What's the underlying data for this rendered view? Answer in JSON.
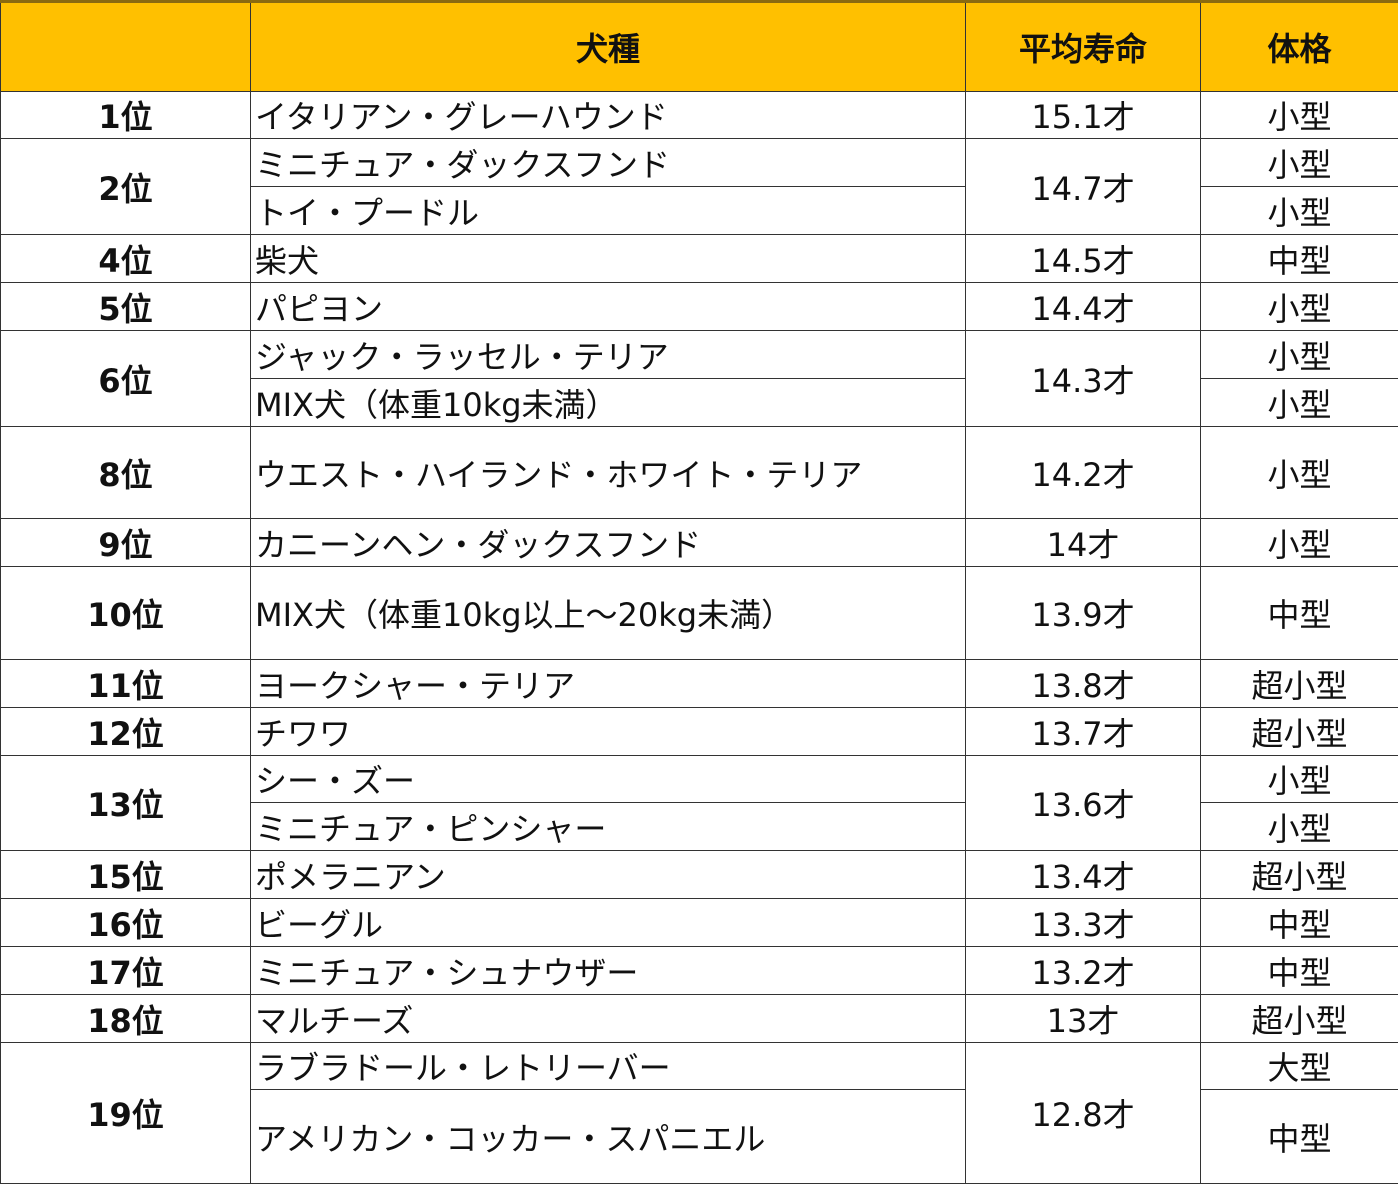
{
  "header": {
    "rank": "",
    "breed": "犬種",
    "lifespan": "平均寿命",
    "size": "体格"
  },
  "accent_color": "#FFC000",
  "groups": [
    {
      "rank": "1位",
      "lifespan": "15.1才",
      "breeds": [
        {
          "name": "イタリアン・グレーハウンド",
          "size": "小型"
        }
      ]
    },
    {
      "rank": "2位",
      "lifespan": "14.7才",
      "breeds": [
        {
          "name": "ミニチュア・ダックスフンド",
          "size": "小型"
        },
        {
          "name": "トイ・プードル",
          "size": "小型"
        }
      ]
    },
    {
      "rank": "4位",
      "lifespan": "14.5才",
      "breeds": [
        {
          "name": "柴犬",
          "size": "中型"
        }
      ]
    },
    {
      "rank": "5位",
      "lifespan": "14.4才",
      "breeds": [
        {
          "name": "パピヨン",
          "size": "小型"
        }
      ]
    },
    {
      "rank": "6位",
      "lifespan": "14.3才",
      "breeds": [
        {
          "name": "ジャック・ラッセル・テリア",
          "size": "小型"
        },
        {
          "name": "MIX犬（体重10kg未満）",
          "size": "小型"
        }
      ]
    },
    {
      "rank": "8位",
      "lifespan": "14.2才",
      "breeds": [
        {
          "name": "ウエスト・ハイランド・ホワイト・テリア",
          "size": "小型"
        }
      ]
    },
    {
      "rank": "9位",
      "lifespan": "14才",
      "breeds": [
        {
          "name": "カニーンヘン・ダックスフンド",
          "size": "小型"
        }
      ]
    },
    {
      "rank": "10位",
      "lifespan": "13.9才",
      "breeds": [
        {
          "name": "MIX犬（体重10kg以上～20kg未満）",
          "size": "中型"
        }
      ]
    },
    {
      "rank": "11位",
      "lifespan": "13.8才",
      "breeds": [
        {
          "name": "ヨークシャー・テリア",
          "size": "超小型"
        }
      ]
    },
    {
      "rank": "12位",
      "lifespan": "13.7才",
      "breeds": [
        {
          "name": "チワワ",
          "size": "超小型"
        }
      ]
    },
    {
      "rank": "13位",
      "lifespan": "13.6才",
      "breeds": [
        {
          "name": "シー・ズー",
          "size": "小型"
        },
        {
          "name": "ミニチュア・ピンシャー",
          "size": "小型"
        }
      ]
    },
    {
      "rank": "15位",
      "lifespan": "13.4才",
      "breeds": [
        {
          "name": "ポメラニアン",
          "size": "超小型"
        }
      ]
    },
    {
      "rank": "16位",
      "lifespan": "13.3才",
      "breeds": [
        {
          "name": "ビーグル",
          "size": "中型"
        }
      ]
    },
    {
      "rank": "17位",
      "lifespan": "13.2才",
      "breeds": [
        {
          "name": "ミニチュア・シュナウザー",
          "size": "中型"
        }
      ]
    },
    {
      "rank": "18位",
      "lifespan": "13才",
      "breeds": [
        {
          "name": "マルチーズ",
          "size": "超小型"
        }
      ]
    },
    {
      "rank": "19位",
      "lifespan": "12.8才",
      "breeds": [
        {
          "name": "ラブラドール・レトリーバー",
          "size": "大型"
        },
        {
          "name": "アメリカン・コッカー・スパニエル",
          "size": "中型"
        }
      ]
    }
  ]
}
